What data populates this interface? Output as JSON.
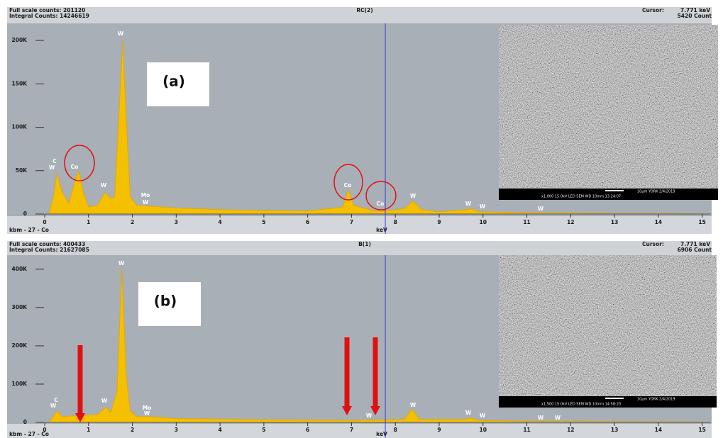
{
  "chart_data": [
    {
      "type": "area",
      "title": "RC(2)",
      "panel_label": "(a)",
      "header_left": [
        "Full scale counts: 201120",
        "Integral Counts: 14246619"
      ],
      "cursor_label": "Cursor:",
      "cursor": {
        "value": 7.771,
        "label": "7.771 keV"
      },
      "cursor_counts": "5420 Count",
      "footer_left": "kbm - 27 - Co",
      "x_label": "keV",
      "color": "#f5c000",
      "x": [
        0.1,
        0.2,
        0.28,
        0.4,
        0.55,
        0.7,
        0.78,
        0.88,
        1.0,
        1.2,
        1.38,
        1.5,
        1.6,
        1.7,
        1.78,
        1.85,
        1.95,
        2.1,
        2.4,
        3,
        4,
        5,
        6,
        6.8,
        6.93,
        7.05,
        7.5,
        7.7,
        8.2,
        8.4,
        8.6,
        9,
        9.6,
        9.75,
        9.9,
        11,
        12,
        13,
        15
      ],
      "values": [
        0,
        20000,
        47000,
        25000,
        12000,
        40000,
        50000,
        25000,
        8000,
        10000,
        25000,
        18000,
        20000,
        120000,
        200000,
        120000,
        20000,
        10000,
        9000,
        7000,
        5000,
        4000,
        3500,
        8000,
        28000,
        10000,
        4000,
        3000,
        6000,
        15000,
        5000,
        2500,
        5000,
        6000,
        2500,
        1500,
        1000,
        500,
        300
      ],
      "xlim": [
        0,
        15.2
      ],
      "ylim": [
        0,
        218000
      ],
      "xticks": [
        0,
        1,
        2,
        3,
        4,
        5,
        6,
        7,
        8,
        9,
        10,
        11,
        12,
        13,
        14,
        15
      ],
      "yticks": [
        0,
        {
          "value": 50000,
          "label": "50K"
        },
        {
          "value": 100000,
          "label": "100K"
        },
        {
          "value": 150000,
          "label": "150K"
        },
        {
          "value": 200000,
          "label": "200K"
        }
      ],
      "annotations": [
        "C",
        "W",
        "Co",
        "W",
        "W",
        "Mo",
        "W",
        "Co",
        "Co",
        "W",
        "W",
        "W",
        "W"
      ],
      "sem_text": [
        "10µm  YORK  2/4/2019",
        "x1,000   15.0kV LED   SEM   WD 10mm   13:24:07"
      ]
    },
    {
      "type": "area",
      "title": "B(1)",
      "panel_label": "(b)",
      "header_left": [
        "Full scale counts: 400433",
        "Integral Counts: 21627085"
      ],
      "cursor_label": "Cursor:",
      "cursor": {
        "value": 7.771,
        "label": "7.771 keV"
      },
      "cursor_counts": "6906 Count",
      "footer_left": "kbm - 27 - Co",
      "x_label": "keV",
      "color": "#f5c000",
      "x": [
        0.1,
        0.28,
        0.4,
        0.8,
        1.2,
        1.4,
        1.5,
        1.65,
        1.76,
        1.86,
        1.95,
        2.1,
        2.4,
        3,
        5,
        7,
        8.2,
        8.38,
        8.55,
        9.6,
        9.7,
        9.9,
        11,
        15
      ],
      "values": [
        0,
        30000,
        15000,
        18000,
        20000,
        40000,
        25000,
        80000,
        400000,
        120000,
        30000,
        15000,
        15000,
        10000,
        7000,
        5000,
        8000,
        35000,
        8000,
        8000,
        12000,
        5000,
        3000,
        1000
      ],
      "xlim": [
        0,
        15.2
      ],
      "ylim": [
        0,
        433000
      ],
      "xticks": [
        0,
        1,
        2,
        3,
        4,
        5,
        6,
        7,
        8,
        9,
        10,
        11,
        12,
        13,
        14,
        15
      ],
      "yticks": [
        0,
        {
          "value": 100000,
          "label": "100K"
        },
        {
          "value": 200000,
          "label": "200K"
        },
        {
          "value": 300000,
          "label": "300K"
        },
        {
          "value": 400000,
          "label": "400K"
        }
      ],
      "annotations": [
        "C",
        "W",
        "W",
        "W",
        "Mo",
        "W",
        "W",
        "W",
        "W",
        "W",
        "W",
        "W"
      ],
      "sem_text": [
        "10µm  YORK  2/4/2019",
        "x1,500   15.0kV LED   SEM   WD 10mm   14:58:20"
      ]
    }
  ]
}
